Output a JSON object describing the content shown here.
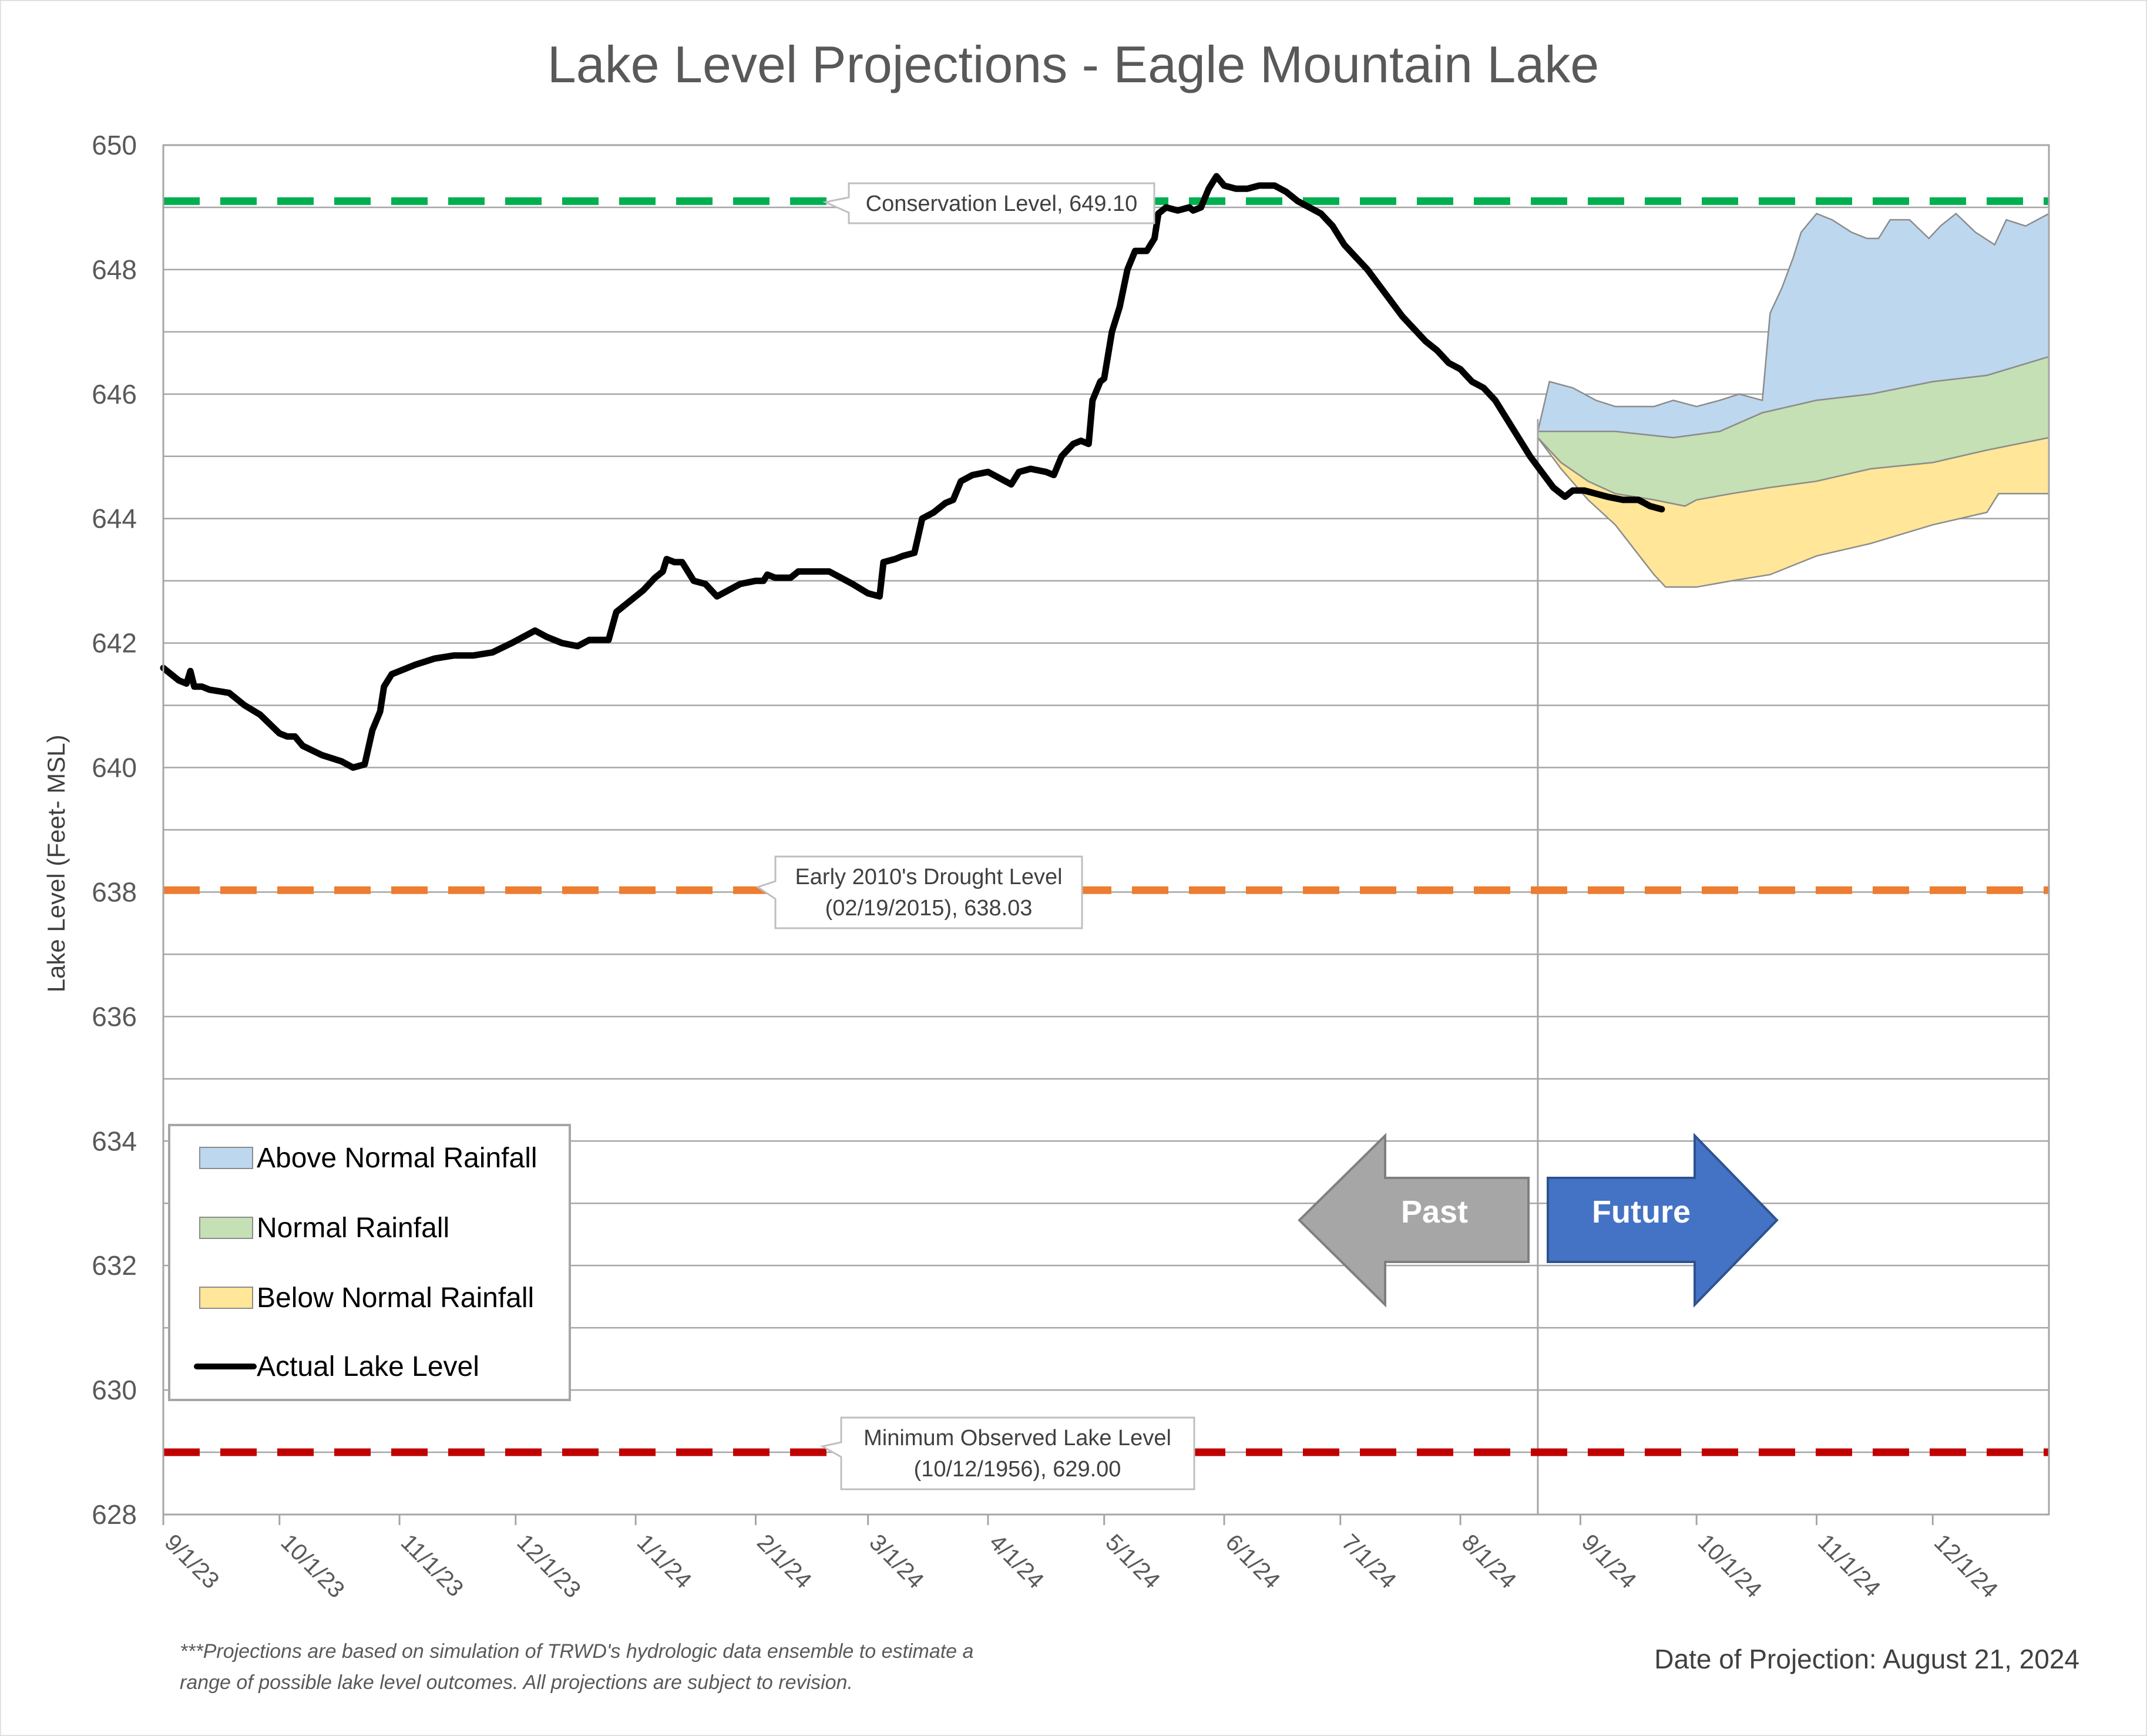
{
  "chart_data": {
    "type": "area",
    "title": "Lake Level Projections - Eagle Mountain Lake",
    "ylabel": "Lake Level (Feet- MSL)",
    "xlabel": "",
    "ylim": [
      628,
      650
    ],
    "yticks": [
      628,
      630,
      632,
      634,
      636,
      638,
      640,
      642,
      644,
      646,
      648,
      650
    ],
    "xlim": [
      "2023-09-01",
      "2024-12-31"
    ],
    "xticks": [
      {
        "date": "2023-09-01",
        "label": "9/1/23"
      },
      {
        "date": "2023-10-01",
        "label": "10/1/23"
      },
      {
        "date": "2023-11-01",
        "label": "11/1/23"
      },
      {
        "date": "2023-12-01",
        "label": "12/1/23"
      },
      {
        "date": "2024-01-01",
        "label": "1/1/24"
      },
      {
        "date": "2024-02-01",
        "label": "2/1/24"
      },
      {
        "date": "2024-03-01",
        "label": "3/1/24"
      },
      {
        "date": "2024-04-01",
        "label": "4/1/24"
      },
      {
        "date": "2024-05-01",
        "label": "5/1/24"
      },
      {
        "date": "2024-06-01",
        "label": "6/1/24"
      },
      {
        "date": "2024-07-01",
        "label": "7/1/24"
      },
      {
        "date": "2024-08-01",
        "label": "8/1/24"
      },
      {
        "date": "2024-09-01",
        "label": "9/1/24"
      },
      {
        "date": "2024-10-01",
        "label": "10/1/24"
      },
      {
        "date": "2024-11-01",
        "label": "11/1/24"
      },
      {
        "date": "2024-12-01",
        "label": "12/1/24"
      }
    ],
    "grid": "horizontal",
    "projection_date": "2024-08-21",
    "reference_lines": [
      {
        "value": 649.1,
        "color": "#00b050",
        "label": "Conservation Level, 649.10"
      },
      {
        "value": 638.03,
        "color": "#ed7d31",
        "label_line1": "Early 2010's Drought Level",
        "label_line2": "(02/19/2015), 638.03"
      },
      {
        "value": 629.0,
        "color": "#c00000",
        "label_line1": "Minimum Observed Lake Level",
        "label_line2": "(10/12/1956), 629.00"
      }
    ],
    "series": [
      {
        "name": "Above Normal Rainfall",
        "kind": "band",
        "fill": "#bdd7ee",
        "upper": [
          [
            "2024-08-21",
            645.4
          ],
          [
            "2024-08-24",
            646.2
          ],
          [
            "2024-08-30",
            646.1
          ],
          [
            "2024-09-05",
            645.9
          ],
          [
            "2024-09-10",
            645.8
          ],
          [
            "2024-09-15",
            645.8
          ],
          [
            "2024-09-20",
            645.8
          ],
          [
            "2024-09-25",
            645.9
          ],
          [
            "2024-10-01",
            645.8
          ],
          [
            "2024-10-07",
            645.9
          ],
          [
            "2024-10-12",
            646.0
          ],
          [
            "2024-10-18",
            645.9
          ],
          [
            "2024-10-20",
            647.3
          ],
          [
            "2024-10-23",
            647.7
          ],
          [
            "2024-10-26",
            648.2
          ],
          [
            "2024-10-28",
            648.6
          ],
          [
            "2024-11-01",
            648.9
          ],
          [
            "2024-11-05",
            648.8
          ],
          [
            "2024-11-10",
            648.6
          ],
          [
            "2024-11-14",
            648.5
          ],
          [
            "2024-11-17",
            648.5
          ],
          [
            "2024-11-20",
            648.8
          ],
          [
            "2024-11-25",
            648.8
          ],
          [
            "2024-11-30",
            648.5
          ],
          [
            "2024-12-03",
            648.7
          ],
          [
            "2024-12-07",
            648.9
          ],
          [
            "2024-12-12",
            648.6
          ],
          [
            "2024-12-17",
            648.4
          ],
          [
            "2024-12-20",
            648.8
          ],
          [
            "2024-12-25",
            648.7
          ],
          [
            "2024-12-31",
            648.9
          ]
        ],
        "lower": [
          [
            "2024-08-21",
            645.4
          ],
          [
            "2024-09-10",
            645.4
          ],
          [
            "2024-09-25",
            645.3
          ],
          [
            "2024-10-07",
            645.4
          ],
          [
            "2024-10-18",
            645.7
          ],
          [
            "2024-11-01",
            645.9
          ],
          [
            "2024-11-15",
            646.0
          ],
          [
            "2024-12-01",
            646.2
          ],
          [
            "2024-12-15",
            646.3
          ],
          [
            "2024-12-31",
            646.6
          ]
        ]
      },
      {
        "name": "Normal Rainfall",
        "kind": "band",
        "fill": "#c5e0b4",
        "upper": [
          [
            "2024-08-21",
            645.4
          ],
          [
            "2024-09-10",
            645.4
          ],
          [
            "2024-09-25",
            645.3
          ],
          [
            "2024-10-07",
            645.4
          ],
          [
            "2024-10-18",
            645.7
          ],
          [
            "2024-11-01",
            645.9
          ],
          [
            "2024-11-15",
            646.0
          ],
          [
            "2024-12-01",
            646.2
          ],
          [
            "2024-12-15",
            646.3
          ],
          [
            "2024-12-31",
            646.6
          ]
        ],
        "lower": [
          [
            "2024-08-21",
            645.3
          ],
          [
            "2024-08-27",
            644.9
          ],
          [
            "2024-09-03",
            644.6
          ],
          [
            "2024-09-10",
            644.4
          ],
          [
            "2024-09-20",
            644.3
          ],
          [
            "2024-09-28",
            644.2
          ],
          [
            "2024-10-01",
            644.3
          ],
          [
            "2024-10-10",
            644.4
          ],
          [
            "2024-10-20",
            644.5
          ],
          [
            "2024-11-01",
            644.6
          ],
          [
            "2024-11-15",
            644.8
          ],
          [
            "2024-12-01",
            644.9
          ],
          [
            "2024-12-15",
            645.1
          ],
          [
            "2024-12-31",
            645.3
          ]
        ]
      },
      {
        "name": "Below Normal Rainfall",
        "kind": "band",
        "fill": "#ffe699",
        "upper": [
          [
            "2024-08-21",
            645.3
          ],
          [
            "2024-08-27",
            644.9
          ],
          [
            "2024-09-03",
            644.6
          ],
          [
            "2024-09-10",
            644.4
          ],
          [
            "2024-09-20",
            644.3
          ],
          [
            "2024-09-28",
            644.2
          ],
          [
            "2024-10-01",
            644.3
          ],
          [
            "2024-10-10",
            644.4
          ],
          [
            "2024-10-20",
            644.5
          ],
          [
            "2024-11-01",
            644.6
          ],
          [
            "2024-11-15",
            644.8
          ],
          [
            "2024-12-01",
            644.9
          ],
          [
            "2024-12-15",
            645.1
          ],
          [
            "2024-12-31",
            645.3
          ]
        ],
        "lower": [
          [
            "2024-08-21",
            645.3
          ],
          [
            "2024-08-27",
            644.8
          ],
          [
            "2024-09-03",
            644.3
          ],
          [
            "2024-09-10",
            643.9
          ],
          [
            "2024-09-15",
            643.5
          ],
          [
            "2024-09-20",
            643.1
          ],
          [
            "2024-09-23",
            642.9
          ],
          [
            "2024-10-01",
            642.9
          ],
          [
            "2024-10-10",
            643.0
          ],
          [
            "2024-10-20",
            643.1
          ],
          [
            "2024-11-01",
            643.4
          ],
          [
            "2024-11-15",
            643.6
          ],
          [
            "2024-12-01",
            643.9
          ],
          [
            "2024-12-15",
            644.1
          ],
          [
            "2024-12-18",
            644.4
          ],
          [
            "2024-12-31",
            644.4
          ]
        ]
      },
      {
        "name": "Actual Lake Level",
        "kind": "line",
        "color": "#000000",
        "points": [
          [
            "2023-09-01",
            641.6
          ],
          [
            "2023-09-05",
            641.4
          ],
          [
            "2023-09-07",
            641.35
          ],
          [
            "2023-09-08",
            641.55
          ],
          [
            "2023-09-09",
            641.3
          ],
          [
            "2023-09-11",
            641.3
          ],
          [
            "2023-09-13",
            641.25
          ],
          [
            "2023-09-18",
            641.2
          ],
          [
            "2023-09-22",
            641.0
          ],
          [
            "2023-09-26",
            640.85
          ],
          [
            "2023-10-01",
            640.55
          ],
          [
            "2023-10-03",
            640.5
          ],
          [
            "2023-10-05",
            640.5
          ],
          [
            "2023-10-07",
            640.35
          ],
          [
            "2023-10-12",
            640.2
          ],
          [
            "2023-10-17",
            640.1
          ],
          [
            "2023-10-20",
            640.0
          ],
          [
            "2023-10-23",
            640.05
          ],
          [
            "2023-10-25",
            640.6
          ],
          [
            "2023-10-27",
            640.9
          ],
          [
            "2023-10-28",
            641.3
          ],
          [
            "2023-10-30",
            641.5
          ],
          [
            "2023-11-01",
            641.55
          ],
          [
            "2023-11-05",
            641.65
          ],
          [
            "2023-11-10",
            641.75
          ],
          [
            "2023-11-15",
            641.8
          ],
          [
            "2023-11-20",
            641.8
          ],
          [
            "2023-11-25",
            641.85
          ],
          [
            "2023-11-30",
            642.0
          ],
          [
            "2023-12-03",
            642.1
          ],
          [
            "2023-12-06",
            642.2
          ],
          [
            "2023-12-09",
            642.1
          ],
          [
            "2023-12-13",
            642.0
          ],
          [
            "2023-12-17",
            641.95
          ],
          [
            "2023-12-20",
            642.05
          ],
          [
            "2023-12-25",
            642.05
          ],
          [
            "2023-12-27",
            642.5
          ],
          [
            "2023-12-31",
            642.7
          ],
          [
            "2024-01-03",
            642.85
          ],
          [
            "2024-01-06",
            643.05
          ],
          [
            "2024-01-08",
            643.15
          ],
          [
            "2024-01-09",
            643.35
          ],
          [
            "2024-01-11",
            643.3
          ],
          [
            "2024-01-13",
            643.3
          ],
          [
            "2024-01-16",
            643.0
          ],
          [
            "2024-01-19",
            642.95
          ],
          [
            "2024-01-22",
            642.75
          ],
          [
            "2024-01-25",
            642.85
          ],
          [
            "2024-01-28",
            642.95
          ],
          [
            "2024-02-01",
            643.0
          ],
          [
            "2024-02-03",
            643.0
          ],
          [
            "2024-02-04",
            643.1
          ],
          [
            "2024-02-06",
            643.05
          ],
          [
            "2024-02-10",
            643.05
          ],
          [
            "2024-02-12",
            643.15
          ],
          [
            "2024-02-16",
            643.15
          ],
          [
            "2024-02-20",
            643.15
          ],
          [
            "2024-02-23",
            643.05
          ],
          [
            "2024-02-26",
            642.95
          ],
          [
            "2024-03-01",
            642.8
          ],
          [
            "2024-03-04",
            642.75
          ],
          [
            "2024-03-05",
            643.3
          ],
          [
            "2024-03-08",
            643.35
          ],
          [
            "2024-03-10",
            643.4
          ],
          [
            "2024-03-13",
            643.45
          ],
          [
            "2024-03-15",
            644.0
          ],
          [
            "2024-03-18",
            644.1
          ],
          [
            "2024-03-21",
            644.25
          ],
          [
            "2024-03-23",
            644.3
          ],
          [
            "2024-03-25",
            644.6
          ],
          [
            "2024-03-28",
            644.7
          ],
          [
            "2024-04-01",
            644.75
          ],
          [
            "2024-04-04",
            644.65
          ],
          [
            "2024-04-07",
            644.55
          ],
          [
            "2024-04-09",
            644.75
          ],
          [
            "2024-04-12",
            644.8
          ],
          [
            "2024-04-16",
            644.75
          ],
          [
            "2024-04-18",
            644.7
          ],
          [
            "2024-04-20",
            645.0
          ],
          [
            "2024-04-23",
            645.2
          ],
          [
            "2024-04-25",
            645.25
          ],
          [
            "2024-04-27",
            645.2
          ],
          [
            "2024-04-28",
            645.9
          ],
          [
            "2024-04-30",
            646.2
          ],
          [
            "2024-05-01",
            646.25
          ],
          [
            "2024-05-03",
            647.0
          ],
          [
            "2024-05-05",
            647.4
          ],
          [
            "2024-05-07",
            648.0
          ],
          [
            "2024-05-09",
            648.3
          ],
          [
            "2024-05-12",
            648.3
          ],
          [
            "2024-05-14",
            648.5
          ],
          [
            "2024-05-15",
            648.9
          ],
          [
            "2024-05-17",
            649.0
          ],
          [
            "2024-05-20",
            648.95
          ],
          [
            "2024-05-23",
            649.0
          ],
          [
            "2024-05-24",
            648.95
          ],
          [
            "2024-05-26",
            649.0
          ],
          [
            "2024-05-28",
            649.3
          ],
          [
            "2024-05-30",
            649.5
          ],
          [
            "2024-06-01",
            649.35
          ],
          [
            "2024-06-04",
            649.3
          ],
          [
            "2024-06-07",
            649.3
          ],
          [
            "2024-06-10",
            649.35
          ],
          [
            "2024-06-14",
            649.35
          ],
          [
            "2024-06-17",
            649.25
          ],
          [
            "2024-06-20",
            649.1
          ],
          [
            "2024-06-23",
            649.0
          ],
          [
            "2024-06-26",
            648.9
          ],
          [
            "2024-06-29",
            648.7
          ],
          [
            "2024-07-02",
            648.4
          ],
          [
            "2024-07-05",
            648.2
          ],
          [
            "2024-07-08",
            648.0
          ],
          [
            "2024-07-11",
            647.75
          ],
          [
            "2024-07-14",
            647.5
          ],
          [
            "2024-07-17",
            647.25
          ],
          [
            "2024-07-20",
            647.05
          ],
          [
            "2024-07-23",
            646.85
          ],
          [
            "2024-07-26",
            646.7
          ],
          [
            "2024-07-29",
            646.5
          ],
          [
            "2024-08-01",
            646.4
          ],
          [
            "2024-08-04",
            646.2
          ],
          [
            "2024-08-07",
            646.1
          ],
          [
            "2024-08-10",
            645.9
          ],
          [
            "2024-08-13",
            645.6
          ],
          [
            "2024-08-16",
            645.3
          ],
          [
            "2024-08-19",
            645.0
          ],
          [
            "2024-08-22",
            644.75
          ],
          [
            "2024-08-25",
            644.5
          ],
          [
            "2024-08-28",
            644.35
          ],
          [
            "2024-08-30",
            644.45
          ],
          [
            "2024-09-02",
            644.45
          ],
          [
            "2024-09-05",
            644.4
          ],
          [
            "2024-09-08",
            644.35
          ],
          [
            "2024-09-12",
            644.3
          ],
          [
            "2024-09-16",
            644.3
          ],
          [
            "2024-09-19",
            644.2
          ],
          [
            "2024-09-22",
            644.15
          ]
        ]
      }
    ],
    "legend": {
      "placement": "bottom-left",
      "items": [
        {
          "label": "Above Normal Rainfall",
          "fill": "#bdd7ee",
          "type": "patch"
        },
        {
          "label": "Normal Rainfall",
          "fill": "#c5e0b4",
          "type": "patch"
        },
        {
          "label": "Below Normal Rainfall",
          "fill": "#ffe699",
          "type": "patch"
        },
        {
          "label": "Actual Lake Level",
          "fill": "#000000",
          "type": "line"
        }
      ]
    },
    "arrows": {
      "past": {
        "label": "Past",
        "color": "#a6a6a6"
      },
      "future": {
        "label": "Future",
        "color": "#4472c4"
      }
    },
    "footnote_line1": "***Projections are based on simulation of TRWD's hydrologic data ensemble to estimate a",
    "footnote_line2": "range of possible lake level outcomes.  All projections are subject to revision.",
    "projection_text": "Date of Projection: August 21, 2024"
  }
}
